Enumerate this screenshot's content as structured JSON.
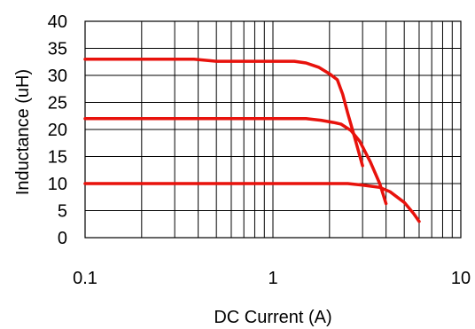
{
  "chart_data": {
    "type": "line",
    "title": "",
    "xlabel": "DC Current (A)",
    "ylabel": "Inductance (uH)",
    "xscale": "log",
    "xlim": [
      0.1,
      10
    ],
    "ylim": [
      0,
      40
    ],
    "xticks": [
      0.1,
      1,
      10
    ],
    "xtick_labels": [
      "0.1",
      "1",
      "10"
    ],
    "yticks": [
      0,
      5,
      10,
      15,
      20,
      25,
      30,
      35,
      40
    ],
    "ytick_labels": [
      "0",
      "5",
      "10",
      "15",
      "20",
      "25",
      "30",
      "35",
      "40"
    ],
    "grid": true,
    "legend": "none",
    "series_color": "#e8120c",
    "series": [
      {
        "x": [
          0.1,
          0.2,
          0.38,
          0.5,
          0.8,
          1.0,
          1.3,
          1.5,
          1.75,
          2.0,
          2.2,
          2.35,
          2.5,
          2.7,
          3.0
        ],
        "y": [
          33,
          33,
          33,
          32.6,
          32.6,
          32.6,
          32.6,
          32.3,
          31.5,
          30.3,
          29.2,
          26.5,
          23,
          19,
          13.3
        ]
      },
      {
        "x": [
          0.1,
          0.5,
          1.0,
          1.5,
          1.8,
          2.1,
          2.3,
          2.6,
          2.9,
          3.3,
          3.7,
          4.0
        ],
        "y": [
          22,
          22,
          22,
          22,
          21.7,
          21.3,
          21,
          19.8,
          17.8,
          14,
          10,
          6.3
        ]
      },
      {
        "x": [
          0.1,
          1.0,
          2.5,
          3.0,
          3.7,
          4.2,
          5.0,
          5.6,
          6.0
        ],
        "y": [
          10,
          10,
          10,
          9.7,
          9.3,
          8.5,
          6.5,
          4.5,
          3.0
        ]
      }
    ]
  }
}
